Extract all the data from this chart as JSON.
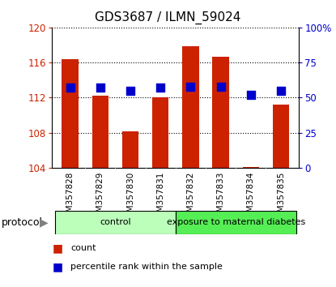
{
  "title": "GDS3687 / ILMN_59024",
  "samples": [
    "GSM357828",
    "GSM357829",
    "GSM357830",
    "GSM357831",
    "GSM357832",
    "GSM357833",
    "GSM357834",
    "GSM357835"
  ],
  "count_values": [
    116.4,
    112.2,
    108.2,
    112.0,
    117.8,
    116.6,
    104.1,
    111.2
  ],
  "percentile_values": [
    57.0,
    57.0,
    55.0,
    57.0,
    57.5,
    57.5,
    52.0,
    55.0
  ],
  "ylim_left": [
    104,
    120
  ],
  "ylim_right": [
    0,
    100
  ],
  "yticks_left": [
    104,
    108,
    112,
    116,
    120
  ],
  "yticks_right": [
    0,
    25,
    50,
    75,
    100
  ],
  "ytick_labels_right": [
    "0",
    "25",
    "50",
    "75",
    "100%"
  ],
  "bar_color": "#cc2200",
  "dot_color": "#0000cc",
  "bar_bottom": 104,
  "bar_width": 0.55,
  "dot_size": 45,
  "groups": [
    {
      "label": "control",
      "indices": [
        0,
        1,
        2,
        3
      ],
      "color": "#bbffbb"
    },
    {
      "label": "exposure to maternal diabetes",
      "indices": [
        4,
        5,
        6,
        7
      ],
      "color": "#55ee55"
    }
  ],
  "group_label_prefix": "protocol",
  "background_color": "#ffffff",
  "plot_bg_color": "#ffffff",
  "tick_label_color_left": "#cc2200",
  "tick_label_color_right": "#0000cc",
  "xtick_bg_color": "#cccccc",
  "legend_items": [
    {
      "label": "count",
      "color": "#cc2200"
    },
    {
      "label": "percentile rank within the sample",
      "color": "#0000cc"
    }
  ]
}
